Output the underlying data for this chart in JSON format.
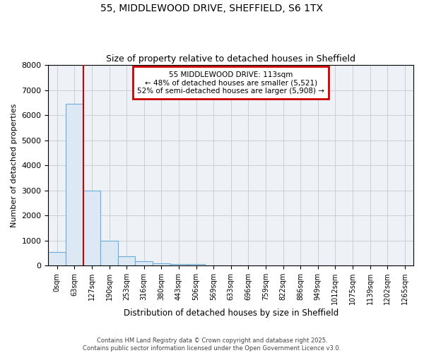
{
  "title_line1": "55, MIDDLEWOOD DRIVE, SHEFFIELD, S6 1TX",
  "title_line2": "Size of property relative to detached houses in Sheffield",
  "xlabel": "Distribution of detached houses by size in Sheffield",
  "ylabel": "Number of detached properties",
  "bar_labels": [
    "0sqm",
    "63sqm",
    "127sqm",
    "190sqm",
    "253sqm",
    "316sqm",
    "380sqm",
    "443sqm",
    "506sqm",
    "569sqm",
    "633sqm",
    "696sqm",
    "759sqm",
    "822sqm",
    "886sqm",
    "949sqm",
    "1012sqm",
    "1075sqm",
    "1139sqm",
    "1202sqm",
    "1265sqm"
  ],
  "bar_values": [
    550,
    6450,
    3000,
    1000,
    375,
    165,
    100,
    55,
    55,
    0,
    0,
    0,
    0,
    0,
    0,
    0,
    0,
    0,
    0,
    0,
    0
  ],
  "bar_color": "#dce9f5",
  "bar_edge_color": "#6aaed6",
  "vline_x": 1.5,
  "vline_color": "#cc0000",
  "annotation_title": "55 MIDDLEWOOD DRIVE: 113sqm",
  "annotation_line2": "← 48% of detached houses are smaller (5,521)",
  "annotation_line3": "52% of semi-detached houses are larger (5,908) →",
  "annotation_box_color": "#cc0000",
  "ylim": [
    0,
    8000
  ],
  "yticks": [
    0,
    1000,
    2000,
    3000,
    4000,
    5000,
    6000,
    7000,
    8000
  ],
  "grid_color": "#c8d0d8",
  "bg_color": "#eef2f7",
  "footer_line1": "Contains HM Land Registry data © Crown copyright and database right 2025.",
  "footer_line2": "Contains public sector information licensed under the Open Government Licence v3.0."
}
